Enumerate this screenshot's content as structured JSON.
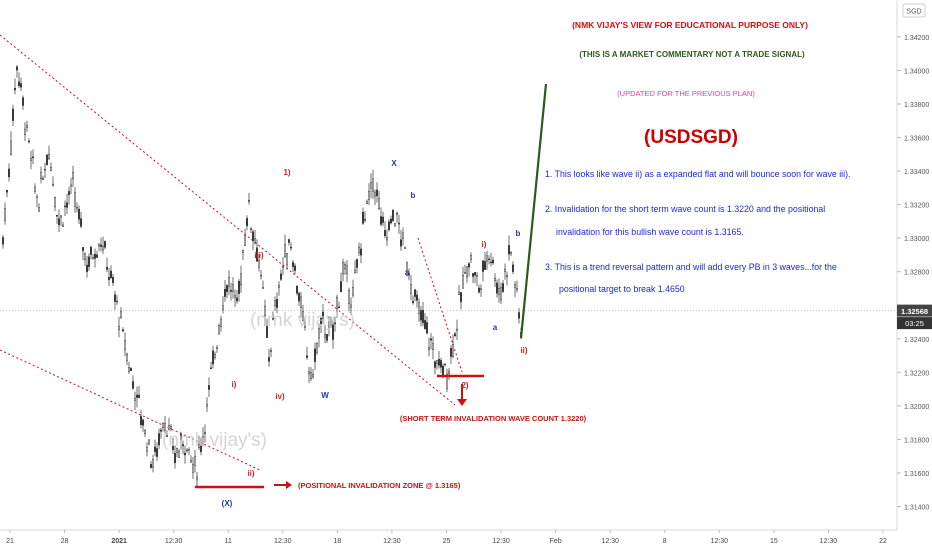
{
  "chart_data": {
    "type": "candlestick",
    "symbol": "USDSGD",
    "currency_label": "SGD",
    "y_ticks": [
      1.342,
      1.34,
      1.338,
      1.336,
      1.334,
      1.332,
      1.33,
      1.328,
      1.324,
      1.322,
      1.32,
      1.318,
      1.316,
      1.314
    ],
    "y_range": [
      1.3126,
      1.3442
    ],
    "x_tick_labels": [
      "21",
      "28",
      "2021",
      "12:30",
      "11",
      "12:30",
      "18",
      "12:30",
      "25",
      "12:30",
      "Feb",
      "12:30",
      "8",
      "12:30",
      "15",
      "12:30",
      "22"
    ],
    "current_price": "1.32568",
    "countdown": "03:25",
    "price_path": [
      [
        0,
        1.33
      ],
      [
        2,
        1.335
      ],
      [
        4,
        1.3405
      ],
      [
        7,
        1.336
      ],
      [
        10,
        1.332
      ],
      [
        13,
        1.3355
      ],
      [
        16,
        1.331
      ],
      [
        20,
        1.333
      ],
      [
        24,
        1.3285
      ],
      [
        28,
        1.33
      ],
      [
        32,
        1.3265
      ],
      [
        36,
        1.3225
      ],
      [
        40,
        1.319
      ],
      [
        43,
        1.3165
      ],
      [
        46,
        1.3195
      ],
      [
        49,
        1.317
      ],
      [
        52,
        1.318
      ],
      [
        55,
        1.316
      ],
      [
        58,
        1.3195
      ],
      [
        61,
        1.324
      ],
      [
        64,
        1.3275
      ],
      [
        67,
        1.326
      ],
      [
        70,
        1.332
      ],
      [
        73,
        1.329
      ],
      [
        76,
        1.323
      ],
      [
        79,
        1.3275
      ],
      [
        82,
        1.33
      ],
      [
        85,
        1.326
      ],
      [
        88,
        1.3215
      ],
      [
        91,
        1.325
      ],
      [
        94,
        1.324
      ],
      [
        97,
        1.328
      ],
      [
        100,
        1.3265
      ],
      [
        103,
        1.331
      ],
      [
        106,
        1.3335
      ],
      [
        109,
        1.33
      ],
      [
        112,
        1.3315
      ],
      [
        115,
        1.329
      ],
      [
        118,
        1.326
      ],
      [
        121,
        1.3245
      ],
      [
        124,
        1.3225
      ],
      [
        127,
        1.322
      ],
      [
        130,
        1.3255
      ],
      [
        133,
        1.329
      ],
      [
        136,
        1.327
      ],
      [
        139,
        1.3295
      ],
      [
        142,
        1.3265
      ],
      [
        145,
        1.3295
      ],
      [
        148,
        1.3245
      ]
    ],
    "wave_labels": [
      {
        "text": "1)",
        "x": 287,
        "y": 175,
        "color": "#cc2222"
      },
      {
        "text": "iii)",
        "x": 259,
        "y": 258,
        "color": "#cc2222"
      },
      {
        "text": "iv)",
        "x": 280,
        "y": 399,
        "color": "#cc2222"
      },
      {
        "text": "i)",
        "x": 234,
        "y": 387,
        "color": "#cc2222"
      },
      {
        "text": "ii)",
        "x": 251,
        "y": 476,
        "color": "#cc2222"
      },
      {
        "text": "(X)",
        "x": 227,
        "y": 506,
        "color": "#2233aa"
      },
      {
        "text": "W",
        "x": 325,
        "y": 398,
        "color": "#2233aa"
      },
      {
        "text": "X",
        "x": 394,
        "y": 166,
        "color": "#2233aa"
      },
      {
        "text": "b",
        "x": 413,
        "y": 198,
        "color": "#2233aa"
      },
      {
        "text": "a",
        "x": 407,
        "y": 275,
        "color": "#2233aa"
      },
      {
        "text": "2)",
        "x": 465,
        "y": 388,
        "color": "#cc2222"
      },
      {
        "text": "i)",
        "x": 484,
        "y": 247,
        "color": "#cc2222"
      },
      {
        "text": "b",
        "x": 518,
        "y": 236,
        "color": "#2233aa"
      },
      {
        "text": "a",
        "x": 495,
        "y": 330,
        "color": "#2233aa"
      },
      {
        "text": "ii)",
        "x": 524,
        "y": 353,
        "color": "#cc2222"
      }
    ],
    "watermarks": [
      "(nmk vijay's)",
      "(nmk vijay's)"
    ],
    "annotations": {
      "header1": "(NMK VIJAY'S VIEW FOR EDUCATIONAL PURPOSE ONLY)",
      "header2": "(THIS IS A MARKET COMMENTARY NOT A TRADE SIGNAL)",
      "header3": "(UPDATED FOR THE PREVIOUS PLAN)",
      "title": "(USDSGD)",
      "note1": "1. This looks like wave ii) as a expanded flat and  will bounce soon for wave iii).",
      "note2a": "2. Invalidation for the short term wave count is 1.3220 and the positional",
      "note2b": "invalidation for this bullish wave count is 1.3165.",
      "note3a": "3. This is a trend reversal pattern and will add every PB in 3 waves...for the",
      "note3b": "positional target to break 1.4650",
      "short_inval": "(SHORT TERM INVALIDATION WAVE COUNT 1.3220)",
      "pos_inval": "(POSITIONAL INVALIDATION ZONE @ 1.3165)"
    },
    "colors": {
      "candle": "#333333",
      "red": "#cc1111",
      "blue": "#1a2bd6",
      "green": "#2d5a1b",
      "magenta": "#e040a0",
      "price_tag": "#444444"
    }
  }
}
